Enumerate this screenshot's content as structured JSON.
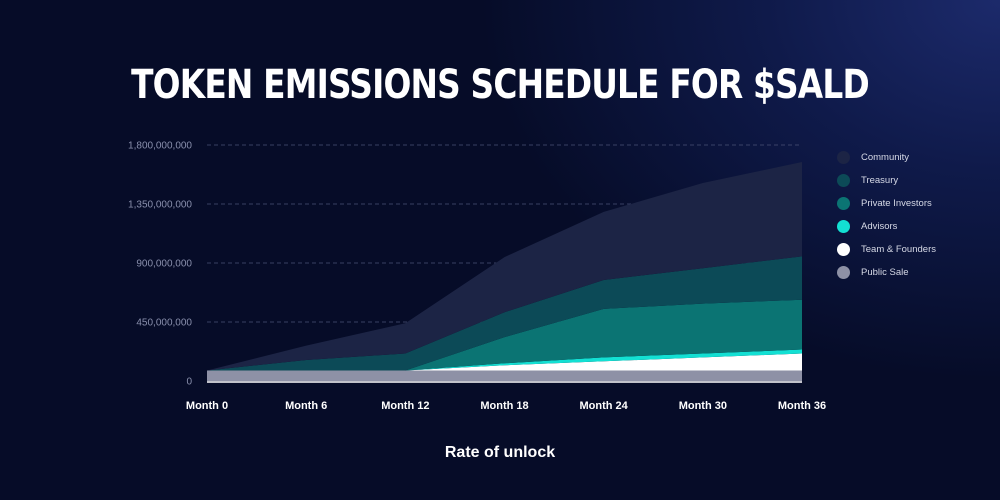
{
  "title": "TOKEN EMISSIONS SCHEDULE FOR $SALD",
  "chart_data": {
    "type": "area",
    "stacked": true,
    "title": "TOKEN EMISSIONS SCHEDULE FOR $SALD",
    "xlabel": "Rate of unlock",
    "ylabel": "",
    "categories": [
      "Month 0",
      "Month 6",
      "Month 12",
      "Month 18",
      "Month 24",
      "Month 30",
      "Month 36"
    ],
    "y_ticks": [
      "0",
      "450,000,000",
      "900,000,000",
      "1,350,000,000",
      "1,800,000,000"
    ],
    "ylim": [
      0,
      1800000000
    ],
    "grid": true,
    "legend_position": "right",
    "series": [
      {
        "name": "Public Sale",
        "color": "#8e91a6",
        "values": [
          80000000,
          80000000,
          80000000,
          80000000,
          80000000,
          80000000,
          80000000
        ]
      },
      {
        "name": "Team & Founders",
        "color": "#ffffff",
        "values": [
          0,
          0,
          0,
          40000000,
          70000000,
          100000000,
          130000000
        ]
      },
      {
        "name": "Advisors",
        "color": "#13e0d3",
        "values": [
          0,
          0,
          0,
          15000000,
          30000000,
          30000000,
          30000000
        ]
      },
      {
        "name": "Private Investors",
        "color": "#0b7473",
        "values": [
          0,
          0,
          0,
          200000000,
          370000000,
          380000000,
          380000000
        ]
      },
      {
        "name": "Treasury",
        "color": "#0c4a57",
        "values": [
          0,
          80000000,
          130000000,
          190000000,
          220000000,
          270000000,
          330000000
        ]
      },
      {
        "name": "Community",
        "color": "#1c2445",
        "values": [
          0,
          110000000,
          230000000,
          420000000,
          520000000,
          650000000,
          720000000
        ]
      }
    ],
    "legend": [
      "Community",
      "Treasury",
      "Private Investors",
      "Advisors",
      "Team & Founders",
      "Public Sale"
    ]
  }
}
